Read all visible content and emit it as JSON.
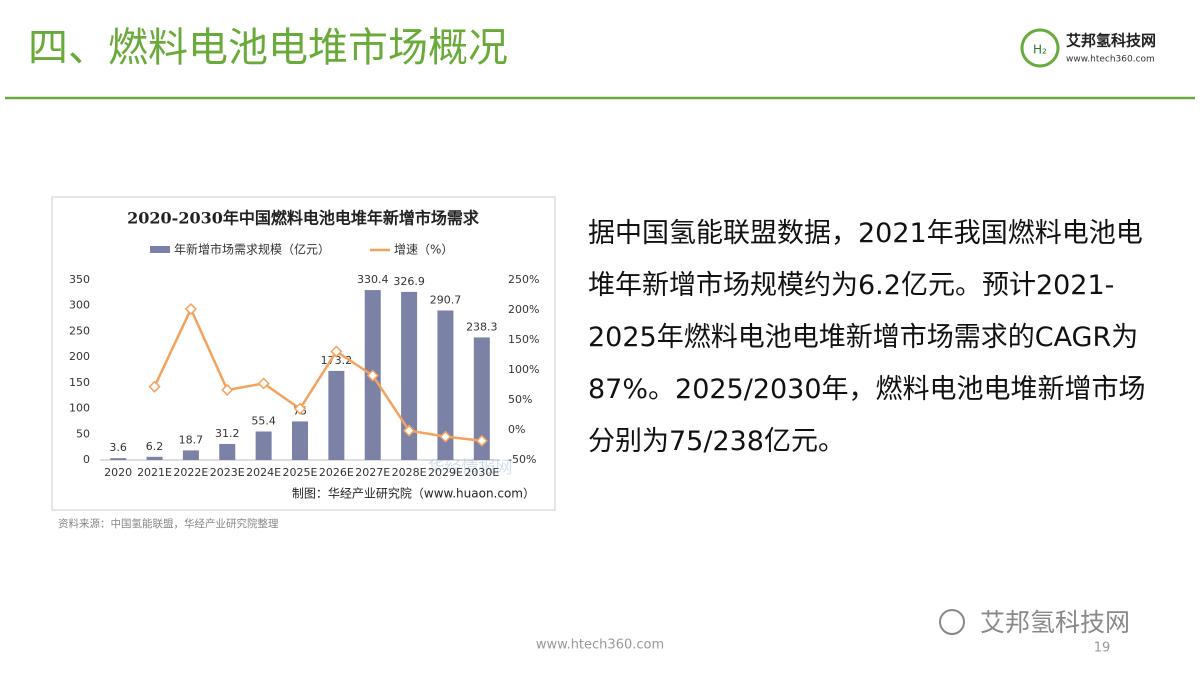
{
  "header": {
    "title": "四、燃料电池电堆市场概况",
    "logo_name": "艾邦氢科技网",
    "logo_url": "www.htech360.com"
  },
  "chart_data": {
    "type": "bar_line",
    "title": "2020-2030年中国燃料电池电堆年新增市场需求",
    "categories": [
      "2020",
      "2021E",
      "2022E",
      "2023E",
      "2024E",
      "2025E",
      "2026E",
      "2027E",
      "2028E",
      "2029E",
      "2030E"
    ],
    "series": [
      {
        "name": "年新增市场需求规模（亿元）",
        "color": "#7b82a6",
        "kind": "bar",
        "values": [
          3.6,
          6.2,
          18.7,
          31.2,
          55.4,
          75,
          173.2,
          330.4,
          326.9,
          290.7,
          238.3
        ]
      },
      {
        "name": "增速（%）",
        "color": "#f4a25e",
        "kind": "line",
        "axis": "y2",
        "values": [
          null,
          72.2,
          201.6,
          66.8,
          77.6,
          35.4,
          130.9,
          90.8,
          -1.1,
          -11.1,
          -18.0
        ]
      }
    ],
    "ylim": [
      0,
      350
    ],
    "yticks": [
      0,
      50,
      100,
      150,
      200,
      250,
      300,
      350
    ],
    "y2lim": [
      -50,
      250
    ],
    "y2ticks": [
      {
        "value": -50,
        "label": "-50%"
      },
      {
        "value": 0,
        "label": "0%"
      },
      {
        "value": 50,
        "label": "50%"
      },
      {
        "value": 100,
        "label": "100%"
      },
      {
        "value": 150,
        "label": "150%"
      },
      {
        "value": 200,
        "label": "200%"
      },
      {
        "value": 250,
        "label": "250%"
      }
    ],
    "credit": "制图：华经产业研究院（www.huaon.com）",
    "watermark": "华经情报网"
  },
  "source": "资料来源：中国氢能联盟，华经产业研究院整理",
  "body": "据中国氢能联盟数据，2021年我国燃料电池电堆年新增市场规模约为6.2亿元。预计2021-2025年燃料电池电堆新增市场需求的CAGR为87%。2025/2030年，燃料电池电堆新增市场分别为75/238亿元。",
  "footer": {
    "url": "www.htech360.com",
    "page": "19",
    "watermark": "艾邦氢科技网"
  }
}
